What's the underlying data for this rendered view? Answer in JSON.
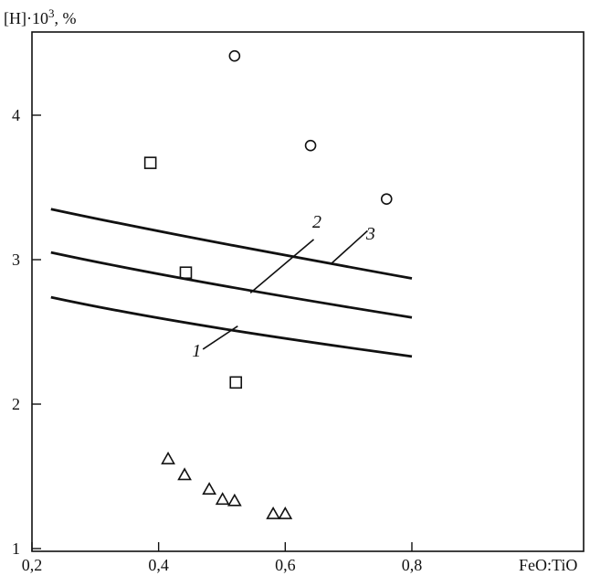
{
  "chart_data": {
    "type": "scatter",
    "ylabel": "[H]·10",
    "ylabel_sup": "3",
    "ylabel_unit": ", %",
    "xlabel": "FeO:TiO",
    "xlim": [
      0.2,
      1.0
    ],
    "ylim": [
      1.0,
      4.5
    ],
    "xticks": [
      0.2,
      0.4,
      0.6,
      0.8
    ],
    "xtick_labels": [
      "0,2",
      "0,4",
      "0,6",
      "0,8"
    ],
    "yticks": [
      1,
      2,
      3,
      4
    ],
    "ytick_labels": [
      "1",
      "2",
      "3",
      "4"
    ],
    "grid": false,
    "legend": "none",
    "series": [
      {
        "marker": "circle",
        "points": [
          [
            0.52,
            4.41
          ],
          [
            0.64,
            3.79
          ],
          [
            0.76,
            3.42
          ]
        ]
      },
      {
        "marker": "square",
        "points": [
          [
            0.387,
            3.67
          ],
          [
            0.443,
            2.91
          ],
          [
            0.522,
            2.15
          ]
        ]
      },
      {
        "marker": "triangle",
        "points": [
          [
            0.415,
            1.62
          ],
          [
            0.441,
            1.51
          ],
          [
            0.48,
            1.41
          ],
          [
            0.501,
            1.34
          ],
          [
            0.52,
            1.33
          ],
          [
            0.581,
            1.24
          ],
          [
            0.6,
            1.24
          ]
        ]
      }
    ],
    "curves": [
      {
        "label": "1",
        "points": [
          [
            0.23,
            2.74
          ],
          [
            0.4,
            2.58
          ],
          [
            0.6,
            2.45
          ],
          [
            0.8,
            2.33
          ]
        ],
        "leader": [
          [
            0.525,
            2.54
          ],
          [
            0.47,
            2.38
          ]
        ],
        "label_at": [
          0.46,
          2.33
        ]
      },
      {
        "label": "2",
        "points": [
          [
            0.23,
            3.05
          ],
          [
            0.4,
            2.89
          ],
          [
            0.6,
            2.74
          ],
          [
            0.8,
            2.6
          ]
        ],
        "leader": [
          [
            0.545,
            2.77
          ],
          [
            0.645,
            3.14
          ]
        ],
        "label_at": [
          0.65,
          3.22
        ]
      },
      {
        "label": "3",
        "points": [
          [
            0.23,
            3.35
          ],
          [
            0.4,
            3.19
          ],
          [
            0.6,
            3.03
          ],
          [
            0.8,
            2.87
          ]
        ],
        "leader": [
          [
            0.672,
            2.97
          ],
          [
            0.73,
            3.2
          ]
        ],
        "label_at": [
          0.735,
          3.14
        ]
      }
    ]
  }
}
